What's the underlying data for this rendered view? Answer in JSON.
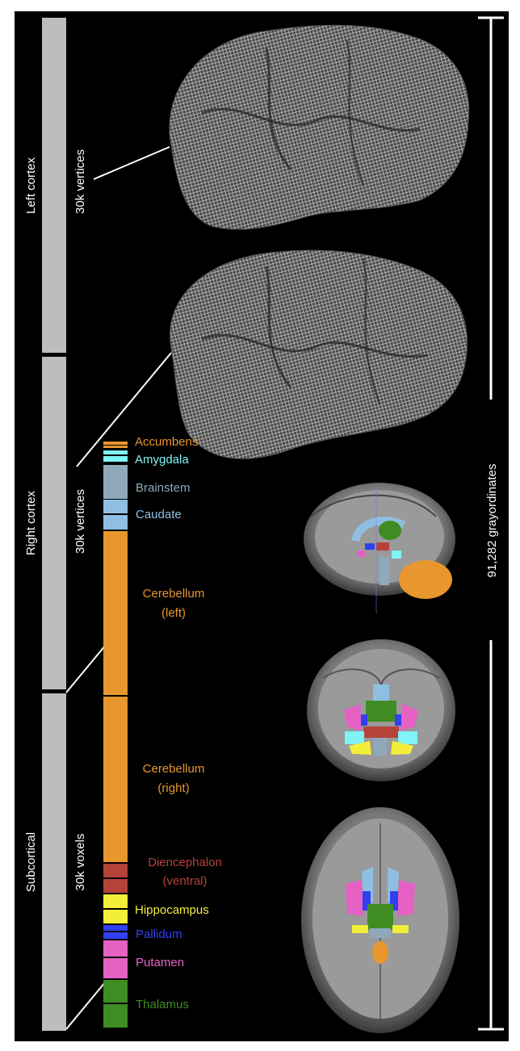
{
  "sections": [
    {
      "id": "left-cortex",
      "label": "Left cortex",
      "sublabel": "30k vertices"
    },
    {
      "id": "right-cortex",
      "label": "Right cortex",
      "sublabel": "30k vertices"
    },
    {
      "id": "subcortical",
      "label": "Subcortical",
      "sublabel": "30k voxels"
    }
  ],
  "total_label": "91,282 grayordinates",
  "structures": [
    {
      "name": "Accumbens",
      "color": "#e8962e"
    },
    {
      "name": "Amygdala",
      "color": "#7ff3f6"
    },
    {
      "name": "Brainstem",
      "color": "#8fa9bb"
    },
    {
      "name": "Caudate",
      "color": "#8fbfe0"
    },
    {
      "name": "Cerebellum (left)",
      "line1": "Cerebellum",
      "line2": "(left)",
      "color": "#e8962e"
    },
    {
      "name": "Cerebellum (right)",
      "line1": "Cerebellum",
      "line2": "(right)",
      "color": "#e8962e"
    },
    {
      "name": "Diencephalon (ventral)",
      "line1": "Diencephalon",
      "line2": "(ventral)",
      "color": "#b5433a"
    },
    {
      "name": "Hippocampus",
      "color": "#f2ee3a"
    },
    {
      "name": "Pallidum",
      "color": "#3140f0"
    },
    {
      "name": "Putamen",
      "color": "#e661c4"
    },
    {
      "name": "Thalamus",
      "color": "#3f8d22"
    }
  ],
  "colors": {
    "background": "#000000",
    "border": "#ffffff",
    "section_bar": "#bdbdbd",
    "brain_mesh": "#8a8a8a",
    "mri_gray": "#8c8c8c"
  }
}
